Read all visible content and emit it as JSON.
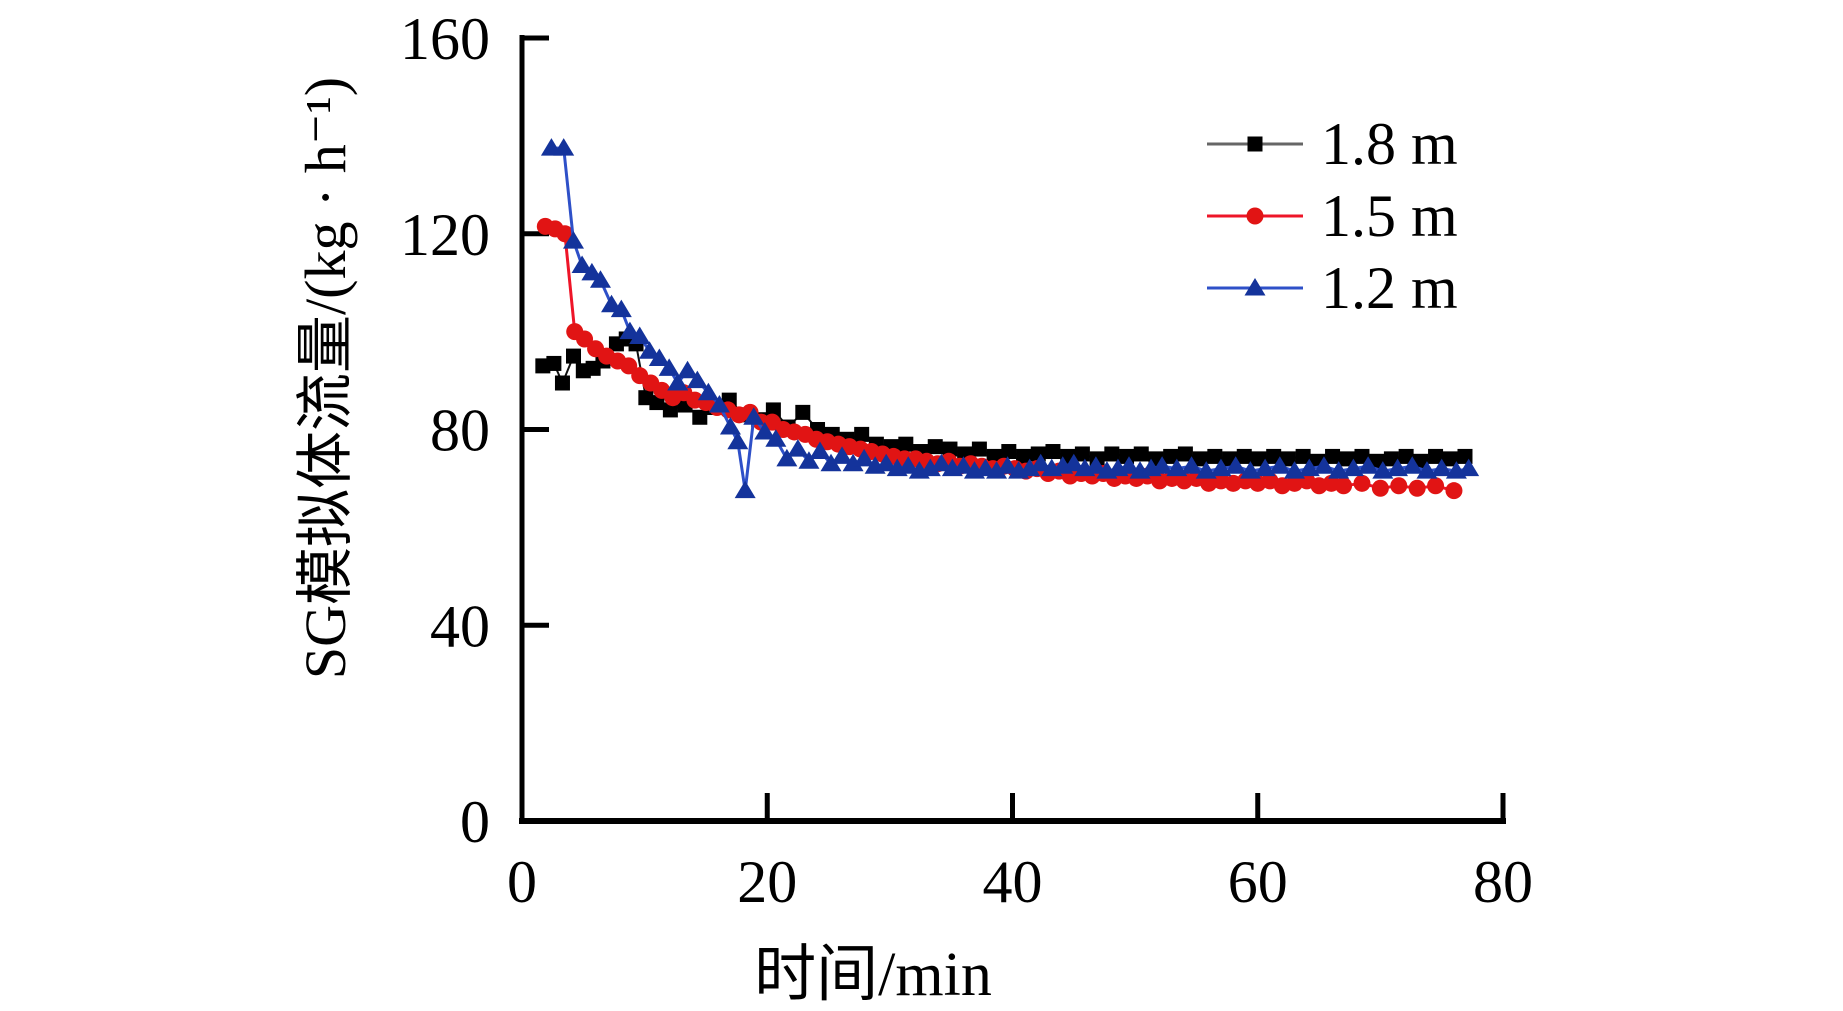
{
  "figure": {
    "background": "#ffffff",
    "text_color": "#000000"
  },
  "chart_data": {
    "type": "line",
    "title": "",
    "xlabel": "时间/min",
    "ylabel": "SG模拟体流量/(kg · h⁻¹)",
    "xlim": [
      0,
      80
    ],
    "ylim": [
      0,
      160
    ],
    "x_ticks": [
      0,
      20,
      40,
      60,
      80
    ],
    "y_ticks": [
      0,
      40,
      80,
      120,
      160
    ],
    "grid": false,
    "legend_position": "upper right",
    "series": [
      {
        "name": "1.8 m",
        "marker": "square",
        "color": "#000000",
        "line_color": "#111111",
        "points": [
          [
            1.7,
            93
          ],
          [
            2.6,
            93.5
          ],
          [
            3.3,
            89.5
          ],
          [
            4.2,
            95
          ],
          [
            5.0,
            92
          ],
          [
            5.8,
            92.5
          ],
          [
            6.6,
            94
          ],
          [
            7.7,
            97.5
          ],
          [
            8.5,
            98.5
          ],
          [
            9.3,
            97.5
          ],
          [
            10.1,
            86.5
          ],
          [
            11.0,
            85.5
          ],
          [
            12.1,
            84
          ],
          [
            13.3,
            85
          ],
          [
            14.5,
            82.5
          ],
          [
            15.7,
            84.5
          ],
          [
            16.9,
            86
          ],
          [
            18.1,
            83
          ],
          [
            19.3,
            82
          ],
          [
            20.5,
            84
          ],
          [
            21.7,
            80.5
          ],
          [
            22.9,
            83.5
          ],
          [
            24.1,
            80
          ],
          [
            25.3,
            79
          ],
          [
            26.5,
            78
          ],
          [
            27.7,
            79
          ],
          [
            28.9,
            77
          ],
          [
            30.1,
            76.5
          ],
          [
            31.3,
            77
          ],
          [
            32.5,
            75.5
          ],
          [
            33.7,
            76.5
          ],
          [
            34.9,
            76
          ],
          [
            36.1,
            75
          ],
          [
            37.3,
            76
          ],
          [
            38.5,
            74.5
          ],
          [
            39.7,
            75.5
          ],
          [
            40.9,
            74.5
          ],
          [
            42.1,
            75
          ],
          [
            43.3,
            75.5
          ],
          [
            44.5,
            74.5
          ],
          [
            45.7,
            75
          ],
          [
            46.9,
            74
          ],
          [
            48.1,
            75
          ],
          [
            49.3,
            74.5
          ],
          [
            50.5,
            75
          ],
          [
            51.7,
            74
          ],
          [
            52.9,
            74.5
          ],
          [
            54.1,
            75
          ],
          [
            55.3,
            74
          ],
          [
            56.5,
            74.5
          ],
          [
            57.7,
            74
          ],
          [
            58.9,
            74.5
          ],
          [
            60.1,
            74
          ],
          [
            61.3,
            74.5
          ],
          [
            62.5,
            74
          ],
          [
            63.7,
            74.5
          ],
          [
            64.9,
            73.5
          ],
          [
            66.1,
            74.5
          ],
          [
            67.3,
            74
          ],
          [
            68.5,
            74.5
          ],
          [
            69.7,
            73.5
          ],
          [
            70.9,
            74
          ],
          [
            72.1,
            74.5
          ],
          [
            73.3,
            73.5
          ],
          [
            74.5,
            74.5
          ],
          [
            75.7,
            74
          ],
          [
            76.9,
            74.5
          ]
        ]
      },
      {
        "name": "1.5 m",
        "marker": "circle",
        "color": "#e11414",
        "line_color": "#ee1528",
        "points": [
          [
            1.9,
            121.5
          ],
          [
            2.7,
            121
          ],
          [
            3.5,
            120
          ],
          [
            4.3,
            100
          ],
          [
            5.1,
            98.5
          ],
          [
            6.0,
            96.5
          ],
          [
            6.9,
            95
          ],
          [
            7.8,
            94
          ],
          [
            8.7,
            93
          ],
          [
            9.6,
            91
          ],
          [
            10.5,
            89.5
          ],
          [
            11.4,
            88
          ],
          [
            12.3,
            86.5
          ],
          [
            13.2,
            87.5
          ],
          [
            14.1,
            86
          ],
          [
            15.0,
            85.5
          ],
          [
            15.9,
            84.5
          ],
          [
            16.8,
            84
          ],
          [
            17.7,
            83
          ],
          [
            18.6,
            83.5
          ],
          [
            19.5,
            81.5
          ],
          [
            20.4,
            81.5
          ],
          [
            21.3,
            80
          ],
          [
            22.2,
            79.5
          ],
          [
            23.1,
            79
          ],
          [
            24.0,
            78
          ],
          [
            24.9,
            77.5
          ],
          [
            25.8,
            77
          ],
          [
            26.7,
            76.5
          ],
          [
            27.6,
            76
          ],
          [
            28.5,
            75.5
          ],
          [
            29.4,
            75
          ],
          [
            30.3,
            74.5
          ],
          [
            31.2,
            74
          ],
          [
            32.1,
            74
          ],
          [
            33.0,
            73.5
          ],
          [
            33.9,
            73
          ],
          [
            34.8,
            73.5
          ],
          [
            35.7,
            72.5
          ],
          [
            36.6,
            73
          ],
          [
            37.5,
            72.5
          ],
          [
            38.4,
            72
          ],
          [
            39.3,
            72.5
          ],
          [
            40.2,
            72
          ],
          [
            41.1,
            71.5
          ],
          [
            42.0,
            72
          ],
          [
            42.9,
            71
          ],
          [
            43.8,
            71.5
          ],
          [
            44.7,
            70.5
          ],
          [
            45.6,
            71
          ],
          [
            46.5,
            70.5
          ],
          [
            47.4,
            71
          ],
          [
            48.3,
            70
          ],
          [
            49.2,
            70.5
          ],
          [
            50.1,
            70
          ],
          [
            51.0,
            70.5
          ],
          [
            52.0,
            69.5
          ],
          [
            53.0,
            70
          ],
          [
            54.0,
            69.5
          ],
          [
            55.0,
            70
          ],
          [
            56.0,
            69
          ],
          [
            57.0,
            69.5
          ],
          [
            58.0,
            69
          ],
          [
            59.0,
            69.5
          ],
          [
            60.0,
            69
          ],
          [
            61.0,
            69.5
          ],
          [
            62.0,
            68.5
          ],
          [
            63.0,
            69
          ],
          [
            64.0,
            69.5
          ],
          [
            65.0,
            68.5
          ],
          [
            66.0,
            69
          ],
          [
            67.0,
            68.5
          ],
          [
            68.5,
            69
          ],
          [
            70.0,
            68
          ],
          [
            71.5,
            68.5
          ],
          [
            73.0,
            68
          ],
          [
            74.5,
            68.5
          ],
          [
            76.0,
            67.5
          ]
        ]
      },
      {
        "name": "1.2 m",
        "marker": "triangle",
        "color": "#14339b",
        "line_color": "#2e50c8",
        "points": [
          [
            2.4,
            137.5
          ],
          [
            3.4,
            137.5
          ],
          [
            4.2,
            118.5
          ],
          [
            4.9,
            113.5
          ],
          [
            5.7,
            112
          ],
          [
            6.4,
            110.5
          ],
          [
            7.3,
            105.5
          ],
          [
            8.1,
            104.5
          ],
          [
            8.8,
            100
          ],
          [
            9.6,
            99
          ],
          [
            10.4,
            96
          ],
          [
            11.2,
            94.5
          ],
          [
            12.0,
            92.5
          ],
          [
            12.7,
            89.5
          ],
          [
            13.5,
            92
          ],
          [
            14.3,
            90
          ],
          [
            15.2,
            87.5
          ],
          [
            16.1,
            85
          ],
          [
            17.0,
            80.5
          ],
          [
            17.6,
            77.5
          ],
          [
            18.2,
            67.5
          ],
          [
            18.9,
            82.5
          ],
          [
            19.8,
            79.5
          ],
          [
            20.7,
            78
          ],
          [
            21.6,
            74
          ],
          [
            22.5,
            76
          ],
          [
            23.4,
            73.5
          ],
          [
            24.3,
            75.5
          ],
          [
            25.2,
            73
          ],
          [
            26.1,
            74.5
          ],
          [
            27.0,
            73
          ],
          [
            27.9,
            74
          ],
          [
            28.8,
            72.5
          ],
          [
            29.7,
            73
          ],
          [
            30.6,
            72
          ],
          [
            31.5,
            72.5
          ],
          [
            32.4,
            71.5
          ],
          [
            33.3,
            72
          ],
          [
            34.2,
            73
          ],
          [
            35.1,
            72
          ],
          [
            36.0,
            72.5
          ],
          [
            36.9,
            71.5
          ],
          [
            37.8,
            72
          ],
          [
            38.7,
            71.5
          ],
          [
            39.6,
            72.5
          ],
          [
            40.5,
            71.5
          ],
          [
            41.4,
            72
          ],
          [
            42.3,
            73
          ],
          [
            43.2,
            72
          ],
          [
            44.1,
            72.5
          ],
          [
            45.0,
            73
          ],
          [
            45.9,
            72
          ],
          [
            46.8,
            72.5
          ],
          [
            47.7,
            71.5
          ],
          [
            48.6,
            72
          ],
          [
            49.5,
            72.5
          ],
          [
            50.4,
            71.5
          ],
          [
            51.3,
            72
          ],
          [
            52.2,
            72.5
          ],
          [
            53.4,
            72
          ],
          [
            54.6,
            72.5
          ],
          [
            55.8,
            71.5
          ],
          [
            57.0,
            72
          ],
          [
            58.2,
            72.5
          ],
          [
            59.4,
            71.5
          ],
          [
            60.6,
            72
          ],
          [
            61.8,
            72.5
          ],
          [
            63.0,
            71.5
          ],
          [
            64.2,
            72
          ],
          [
            65.4,
            72.5
          ],
          [
            66.6,
            71.5
          ],
          [
            67.8,
            72
          ],
          [
            69.0,
            72.5
          ],
          [
            70.2,
            71.5
          ],
          [
            71.4,
            72
          ],
          [
            72.6,
            72.5
          ],
          [
            73.8,
            71.5
          ],
          [
            75.0,
            72
          ],
          [
            76.2,
            71.5
          ],
          [
            77.2,
            72
          ]
        ]
      }
    ]
  }
}
